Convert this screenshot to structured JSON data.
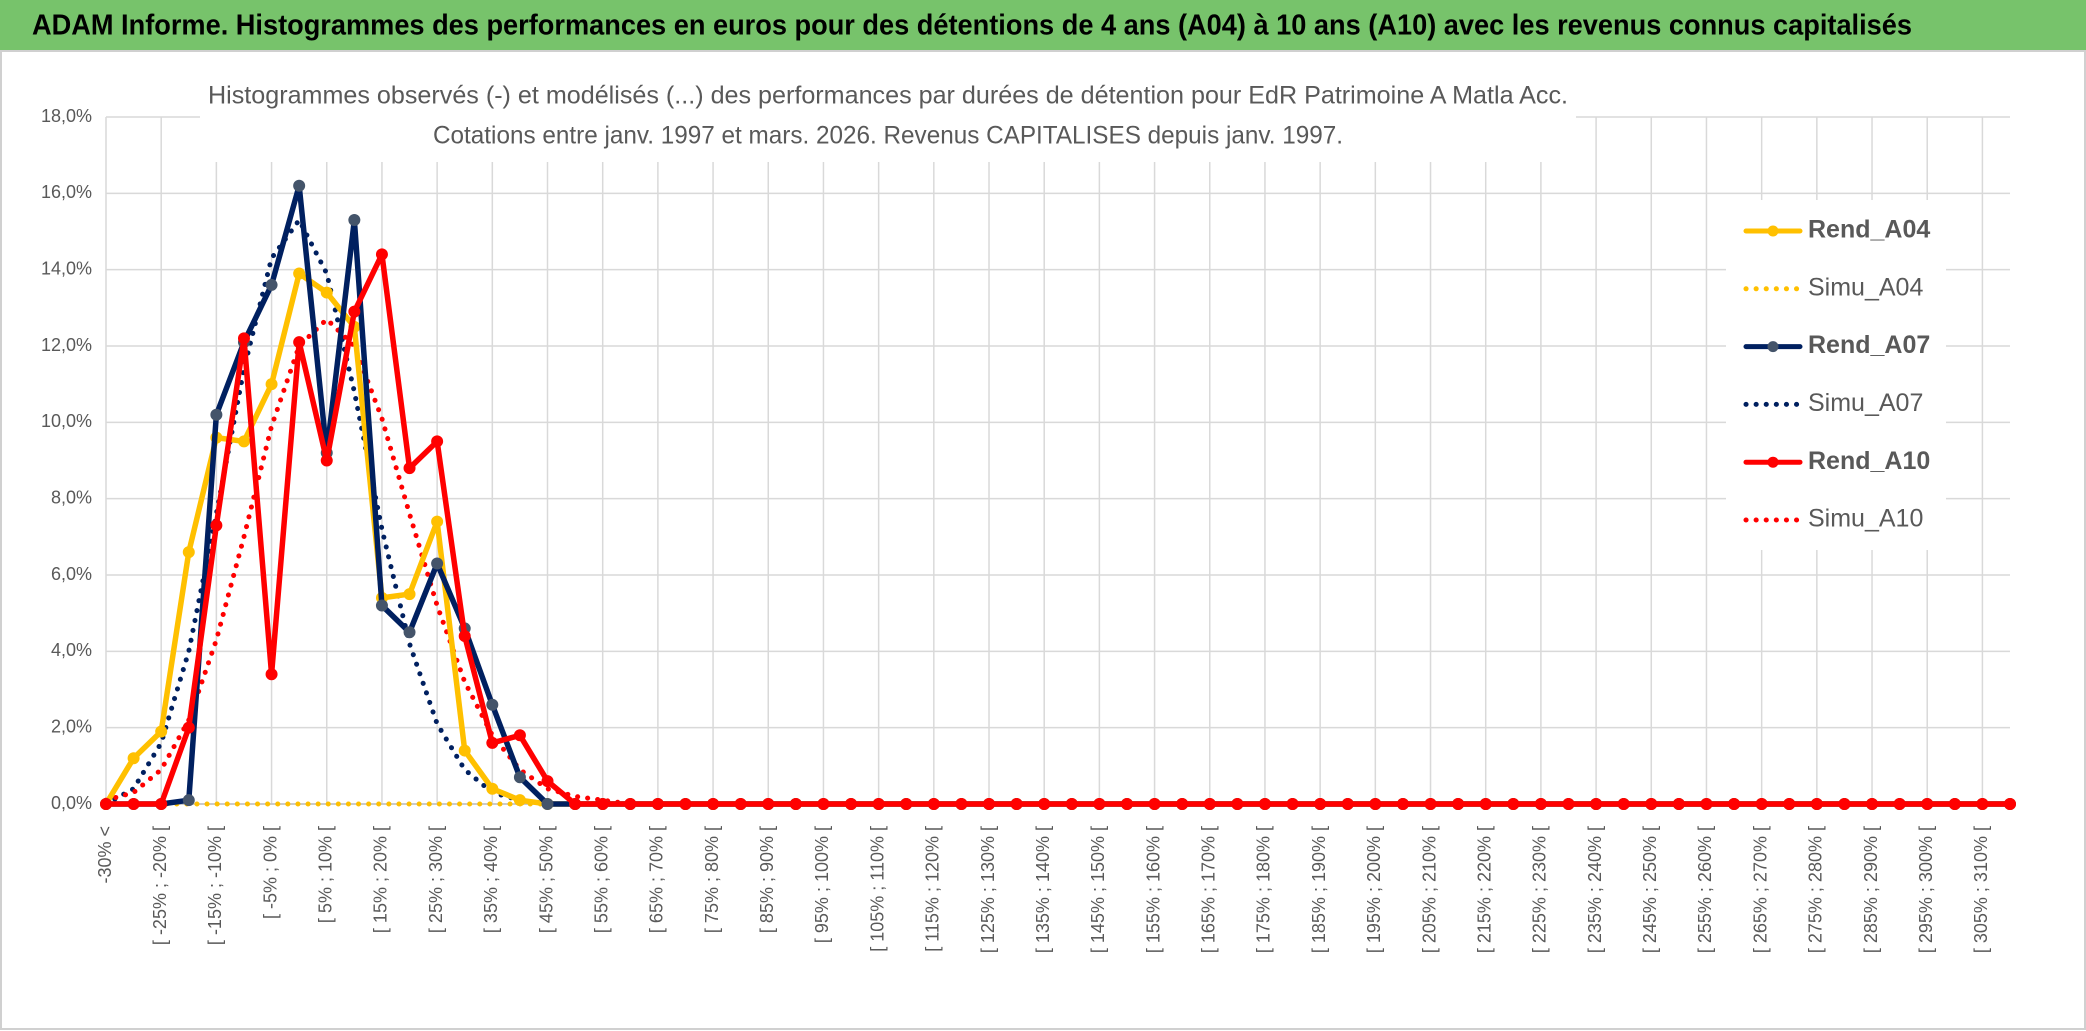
{
  "header": {
    "title": "ADAM Informe. Histogrammes des performances en euros pour des détentions de 4 ans (A04) à 10 ans (A10) avec les revenus connus capitalisés"
  },
  "chart_data": {
    "type": "line",
    "title": [
      "Histogrammes observés (-) et modélisés (...) des performances par durées de détention pour EdR Patrimoine A Matla Acc.",
      "Cotations entre janv. 1997 et mars. 2026. Revenus CAPITALISES depuis janv. 1997."
    ],
    "categories": [
      "-30% <",
      null,
      "[ -25% ; -20% [",
      null,
      "[ -15% ; -10% [",
      null,
      "[ -5% ; 0% [",
      null,
      "[ 5% ; 10% [",
      null,
      "[ 15% ; 20% [",
      null,
      "[ 25% ; 30% [",
      null,
      "[ 35% ; 40% [",
      null,
      "[ 45% ; 50% [",
      null,
      "[ 55% ; 60% [",
      null,
      "[ 65% ; 70% [",
      null,
      "[ 75% ; 80% [",
      null,
      "[ 85% ; 90% [",
      null,
      "[ 95% ; 100% [",
      null,
      "[ 105% ; 110% [",
      null,
      "[ 115% ; 120% [",
      null,
      "[ 125% ; 130% [",
      null,
      "[ 135% ; 140% [",
      null,
      "[ 145% ; 150% [",
      null,
      "[ 155% ; 160% [",
      null,
      "[ 165% ; 170% [",
      null,
      "[ 175% ; 180% [",
      null,
      "[ 185% ; 190% [",
      null,
      "[ 195% ; 200% [",
      null,
      "[ 205% ; 210% [",
      null,
      "[ 215% ; 220% [",
      null,
      "[ 225% ; 230% [",
      null,
      "[ 235% ; 240% [",
      null,
      "[ 245% ; 250% [",
      null,
      "[ 255% ; 260% [",
      null,
      "[ 265% ; 270% [",
      null,
      "[ 275% ; 280% [",
      null,
      "[ 285% ; 290% [",
      null,
      "[ 295% ; 300% [",
      null,
      "[ 305% ; 310% [",
      null
    ],
    "series": [
      {
        "name": "Rend_A04",
        "color": "#ffc000",
        "style": "solid",
        "markers": true,
        "values": [
          0,
          1.2,
          1.9,
          6.6,
          9.6,
          9.5,
          11.0,
          13.9,
          13.4,
          12.5,
          5.4,
          5.5,
          7.4,
          1.4,
          0.4,
          0.1,
          0,
          0,
          0,
          0,
          0,
          0,
          0,
          0,
          0,
          0,
          0,
          0,
          0,
          0,
          0,
          0,
          0,
          0,
          0,
          0,
          0,
          0,
          0,
          0,
          0,
          0,
          0,
          0,
          0,
          0,
          0,
          0,
          0,
          0,
          0,
          0,
          0,
          0,
          0,
          0,
          0,
          0,
          0,
          0,
          0,
          0,
          0,
          0,
          0,
          0,
          0,
          0,
          0,
          0
        ]
      },
      {
        "name": "Simu_A04",
        "color": "#ffc000",
        "style": "dotted",
        "markers": false,
        "values": [
          0,
          0,
          0,
          0,
          0,
          0,
          0,
          0,
          0,
          0,
          0,
          0,
          0,
          0,
          0,
          0,
          0,
          0,
          0,
          0,
          0,
          0,
          0,
          0,
          0,
          0,
          0,
          0,
          0,
          0,
          0,
          0,
          0,
          0,
          0,
          0,
          0,
          0,
          0,
          0,
          0,
          0,
          0,
          0,
          0,
          0,
          0,
          0,
          0,
          0,
          0,
          0,
          0,
          0,
          0,
          0,
          0,
          0,
          0,
          0,
          0,
          0,
          0,
          0,
          0,
          0,
          0,
          0,
          0,
          0
        ]
      },
      {
        "name": "Rend_A07",
        "color": "#002060",
        "marker_color": "#44546a",
        "style": "solid",
        "markers": true,
        "values": [
          0,
          0,
          0,
          0.1,
          10.2,
          12.1,
          13.6,
          16.2,
          9.2,
          15.3,
          5.2,
          4.5,
          6.3,
          4.6,
          2.6,
          0.7,
          0,
          0,
          0,
          0,
          0,
          0,
          0,
          0,
          0,
          0,
          0,
          0,
          0,
          0,
          0,
          0,
          0,
          0,
          0,
          0,
          0,
          0,
          0,
          0,
          0,
          0,
          0,
          0,
          0,
          0,
          0,
          0,
          0,
          0,
          0,
          0,
          0,
          0,
          0,
          0,
          0,
          0,
          0,
          0,
          0,
          0,
          0,
          0,
          0,
          0,
          0,
          0,
          0,
          0
        ]
      },
      {
        "name": "Simu_A07",
        "color": "#002060",
        "style": "dotted",
        "markers": false,
        "values": [
          0,
          0.4,
          1.6,
          4.0,
          7.6,
          11.4,
          14.3,
          15.3,
          13.9,
          10.8,
          7.2,
          4.2,
          2.1,
          0.9,
          0.3,
          0.1,
          0,
          0,
          0,
          0,
          0,
          0,
          0,
          0,
          0,
          0,
          0,
          0,
          0,
          0,
          0,
          0,
          0,
          0,
          0,
          0,
          0,
          0,
          0,
          0,
          0,
          0,
          0,
          0,
          0,
          0,
          0,
          0,
          0,
          0,
          0,
          0,
          0,
          0,
          0,
          0,
          0,
          0,
          0,
          0,
          0,
          0,
          0,
          0,
          0,
          0,
          0,
          0,
          0,
          0
        ]
      },
      {
        "name": "Rend_A10",
        "color": "#ff0000",
        "style": "solid",
        "markers": true,
        "values": [
          0,
          0,
          0,
          2.0,
          7.3,
          12.2,
          3.4,
          12.1,
          9.0,
          12.9,
          14.4,
          8.8,
          9.5,
          4.4,
          1.6,
          1.8,
          0.6,
          0,
          0,
          0,
          0,
          0,
          0,
          0,
          0,
          0,
          0,
          0,
          0,
          0,
          0,
          0,
          0,
          0,
          0,
          0,
          0,
          0,
          0,
          0,
          0,
          0,
          0,
          0,
          0,
          0,
          0,
          0,
          0,
          0,
          0,
          0,
          0,
          0,
          0,
          0,
          0,
          0,
          0,
          0,
          0,
          0,
          0,
          0,
          0,
          0,
          0,
          0,
          0,
          0
        ]
      },
      {
        "name": "Simu_A10",
        "color": "#ff0000",
        "style": "dotted",
        "markers": false,
        "values": [
          0.1,
          0.3,
          0.9,
          2.2,
          4.3,
          7.0,
          9.9,
          12.0,
          12.7,
          12.0,
          10.1,
          7.6,
          5.2,
          3.2,
          1.8,
          0.9,
          0.4,
          0.2,
          0.1,
          0,
          0,
          0,
          0,
          0,
          0,
          0,
          0,
          0,
          0,
          0,
          0,
          0,
          0,
          0,
          0,
          0,
          0,
          0,
          0,
          0,
          0,
          0,
          0,
          0,
          0,
          0,
          0,
          0,
          0,
          0,
          0,
          0,
          0,
          0,
          0,
          0,
          0,
          0,
          0,
          0,
          0,
          0,
          0,
          0,
          0,
          0,
          0,
          0,
          0,
          0
        ]
      }
    ],
    "ylim": [
      0,
      18
    ],
    "yticks": [
      {
        "value": 0,
        "label": "0,0%"
      },
      {
        "value": 2,
        "label": "2,0%"
      },
      {
        "value": 4,
        "label": "4,0%"
      },
      {
        "value": 6,
        "label": "6,0%"
      },
      {
        "value": 8,
        "label": "8,0%"
      },
      {
        "value": 10,
        "label": "10,0%"
      },
      {
        "value": 12,
        "label": "12,0%"
      },
      {
        "value": 14,
        "label": "14,0%"
      },
      {
        "value": 16,
        "label": "16,0%"
      },
      {
        "value": 18,
        "label": "18,0%"
      }
    ],
    "grid": true,
    "legend": "right"
  }
}
